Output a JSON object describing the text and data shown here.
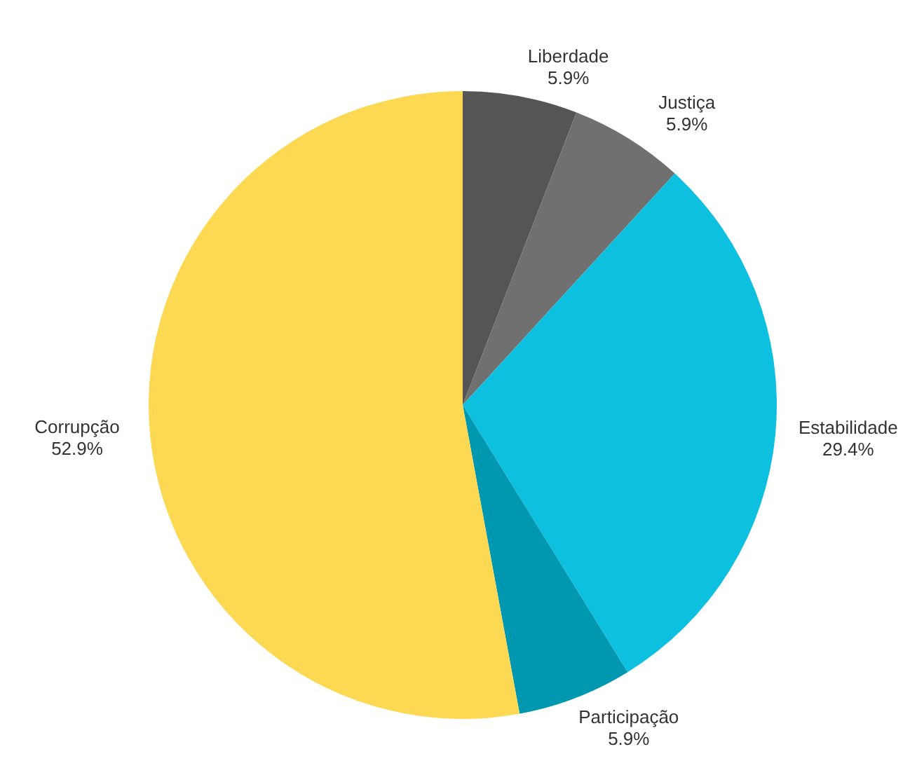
{
  "chart_data": {
    "type": "pie",
    "categories": [
      "Liberdade",
      "Justiça",
      "Estabilidade",
      "Participação",
      "Corrupção"
    ],
    "values": [
      5.9,
      5.9,
      29.4,
      5.9,
      52.9
    ],
    "colors": [
      "#555555",
      "#707070",
      "#0dc0e0",
      "#0097b0",
      "#fdd853"
    ],
    "value_labels": [
      "5.9%",
      "5.9%",
      "29.4%",
      "5.9%",
      "52.9%"
    ]
  }
}
